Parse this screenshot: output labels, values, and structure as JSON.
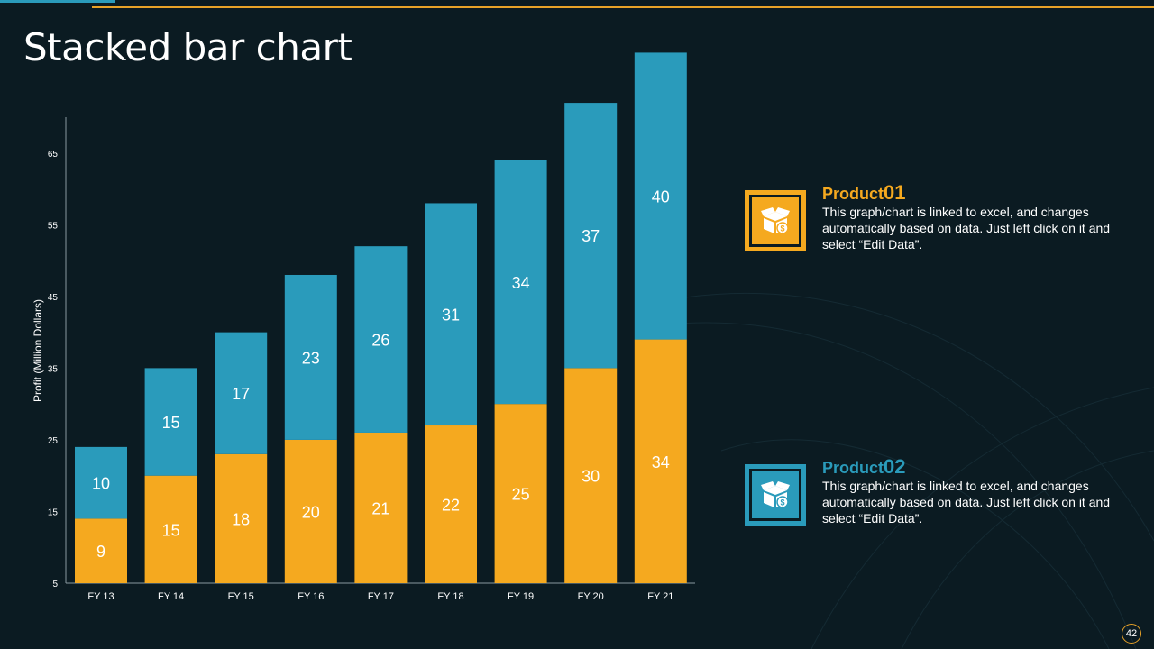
{
  "slide": {
    "title": "Stacked bar chart",
    "page_number": "42"
  },
  "colors": {
    "product01": "#f5a91f",
    "product02": "#2a9bbb",
    "background": "#0b1b22",
    "text": "#ffffff"
  },
  "legend": [
    {
      "label_word": "Product",
      "label_num": "01",
      "description": "This graph/chart is linked to excel, and changes automatically based on data. Just left click on it and select “Edit Data”.",
      "icon": "box-dollar-icon"
    },
    {
      "label_word": "Product",
      "label_num": "02",
      "description": "This graph/chart is linked to excel, and changes automatically based on data. Just left click on it and select “Edit Data”.",
      "icon": "box-dollar-icon"
    }
  ],
  "chart_data": {
    "type": "bar",
    "stacked": true,
    "title": "",
    "xlabel": "",
    "ylabel": "Profit  (Million Dollars)",
    "ylim": [
      5,
      70
    ],
    "yticks": [
      5,
      15,
      25,
      35,
      45,
      55,
      65
    ],
    "categories": [
      "FY 13",
      "FY 14",
      "FY 15",
      "FY 16",
      "FY 17",
      "FY 18",
      "FY 19",
      "FY 20",
      "FY 21"
    ],
    "series": [
      {
        "name": "Product 01",
        "color": "#f5a91f",
        "values": [
          9,
          15,
          18,
          20,
          21,
          22,
          25,
          30,
          34
        ]
      },
      {
        "name": "Product 02",
        "color": "#2a9bbb",
        "values": [
          10,
          15,
          17,
          23,
          26,
          31,
          34,
          37,
          40
        ]
      }
    ]
  }
}
